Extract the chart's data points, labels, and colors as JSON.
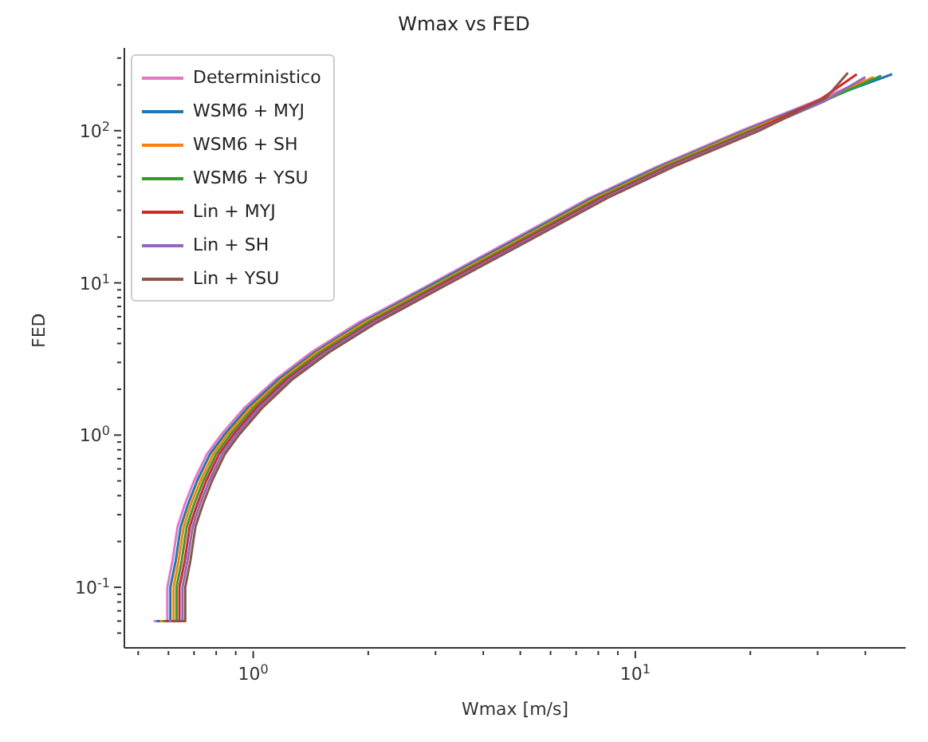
{
  "chart_data": {
    "type": "line",
    "title": "Wmax vs FED",
    "xlabel": "Wmax [m/s]",
    "ylabel": "FED",
    "log": "xy",
    "grid": false,
    "legend": "top left",
    "marker": "none",
    "line_style": "solid",
    "xlim": [
      0.46,
      51
    ],
    "ylim": [
      0.04,
      350
    ],
    "xticks": [
      {
        "value": 0.5,
        "label": null
      },
      {
        "value": 0.6,
        "label": null
      },
      {
        "value": 0.7,
        "label": null
      },
      {
        "value": 0.8,
        "label": null
      },
      {
        "value": 0.9,
        "label": null
      },
      {
        "value": 1,
        "label": "10$^{0}$"
      },
      {
        "value": 2,
        "label": null
      },
      {
        "value": 3,
        "label": null
      },
      {
        "value": 4,
        "label": null
      },
      {
        "value": 5,
        "label": null
      },
      {
        "value": 6,
        "label": null
      },
      {
        "value": 7,
        "label": null
      },
      {
        "value": 8,
        "label": null
      },
      {
        "value": 9,
        "label": null
      },
      {
        "value": 10,
        "label": "10$^{1}$"
      },
      {
        "value": 20,
        "label": null
      },
      {
        "value": 30,
        "label": null
      },
      {
        "value": 40,
        "label": null
      }
    ],
    "yticks": [
      {
        "value": 0.05,
        "label": null
      },
      {
        "value": 0.06,
        "label": null
      },
      {
        "value": 0.07,
        "label": null
      },
      {
        "value": 0.08,
        "label": null
      },
      {
        "value": 0.09,
        "label": null
      },
      {
        "value": 0.1,
        "label": "10$^{-1}$"
      },
      {
        "value": 0.2,
        "label": null
      },
      {
        "value": 0.3,
        "label": null
      },
      {
        "value": 0.4,
        "label": null
      },
      {
        "value": 0.5,
        "label": null
      },
      {
        "value": 0.6,
        "label": null
      },
      {
        "value": 0.7,
        "label": null
      },
      {
        "value": 0.8,
        "label": null
      },
      {
        "value": 0.9,
        "label": null
      },
      {
        "value": 1,
        "label": "10$^{0}$"
      },
      {
        "value": 2,
        "label": null
      },
      {
        "value": 3,
        "label": null
      },
      {
        "value": 4,
        "label": null
      },
      {
        "value": 5,
        "label": null
      },
      {
        "value": 6,
        "label": null
      },
      {
        "value": 7,
        "label": null
      },
      {
        "value": 8,
        "label": null
      },
      {
        "value": 9,
        "label": null
      },
      {
        "value": 10,
        "label": "10$^{1}$"
      },
      {
        "value": 20,
        "label": null
      },
      {
        "value": 30,
        "label": null
      },
      {
        "value": 40,
        "label": null
      },
      {
        "value": 50,
        "label": null
      },
      {
        "value": 60,
        "label": null
      },
      {
        "value": 70,
        "label": null
      },
      {
        "value": 80,
        "label": null
      },
      {
        "value": 90,
        "label": null
      },
      {
        "value": 100,
        "label": "10$^{2}$"
      },
      {
        "value": 200,
        "label": null
      },
      {
        "value": 300,
        "label": null
      }
    ],
    "series": [
      {
        "name": "Deterministico",
        "color": "#e377c2",
        "x": [
          0.549,
          0.596,
          0.596,
          0.615,
          0.634,
          0.662,
          0.7,
          0.757,
          0.823,
          0.946,
          1.14,
          1.42,
          1.89,
          2.84,
          4.73,
          7.57,
          11.4,
          18.9,
          28.4,
          40
        ],
        "values": [
          0.06,
          0.06,
          0.1,
          0.15,
          0.25,
          0.35,
          0.5,
          0.75,
          1.0,
          1.5,
          2.3,
          3.5,
          5.5,
          9.5,
          19,
          36,
          58,
          100,
          150,
          215
        ]
      },
      {
        "name": "WSM6 + MYJ",
        "color": "#1f77b4",
        "x": [
          0.559,
          0.607,
          0.607,
          0.627,
          0.646,
          0.675,
          0.713,
          0.771,
          0.839,
          0.964,
          1.16,
          1.45,
          1.93,
          2.89,
          4.82,
          7.71,
          11.6,
          19.3,
          28.9,
          47
        ],
        "values": [
          0.06,
          0.06,
          0.1,
          0.15,
          0.25,
          0.35,
          0.5,
          0.75,
          1.0,
          1.5,
          2.3,
          3.5,
          5.5,
          9.5,
          19,
          36,
          58,
          100,
          150,
          235
        ]
      },
      {
        "name": "WSM6 + SH",
        "color": "#ff7f0e",
        "x": [
          0.57,
          0.619,
          0.619,
          0.638,
          0.658,
          0.687,
          0.727,
          0.786,
          0.854,
          0.982,
          1.18,
          1.47,
          1.96,
          2.95,
          4.91,
          7.86,
          11.8,
          19.6,
          29.5,
          42
        ],
        "values": [
          0.06,
          0.06,
          0.1,
          0.15,
          0.25,
          0.35,
          0.5,
          0.75,
          1.0,
          1.5,
          2.3,
          3.5,
          5.5,
          9.5,
          19,
          36,
          58,
          100,
          150,
          225
        ]
      },
      {
        "name": "WSM6 + YSU",
        "color": "#2ca02c",
        "x": [
          0.58,
          0.63,
          0.63,
          0.65,
          0.67,
          0.7,
          0.74,
          0.8,
          0.87,
          1.0,
          1.2,
          1.5,
          2,
          3,
          5,
          8,
          12,
          20,
          30,
          44
        ],
        "values": [
          0.06,
          0.06,
          0.1,
          0.15,
          0.25,
          0.35,
          0.5,
          0.75,
          1.0,
          1.5,
          2.3,
          3.5,
          5.5,
          9.5,
          19,
          36,
          58,
          100,
          150,
          230
        ]
      },
      {
        "name": "Lin + MYJ",
        "color": "#d62728",
        "x": [
          0.59,
          0.641,
          0.641,
          0.662,
          0.682,
          0.713,
          0.753,
          0.814,
          0.886,
          1.018,
          1.22,
          1.53,
          2.04,
          3.05,
          5.09,
          8.14,
          12.2,
          20.4,
          30.5,
          38
        ],
        "values": [
          0.06,
          0.06,
          0.1,
          0.15,
          0.25,
          0.35,
          0.5,
          0.75,
          1.0,
          1.5,
          2.3,
          3.5,
          5.5,
          9.5,
          19,
          36,
          58,
          100,
          160,
          235
        ]
      },
      {
        "name": "Lin + SH",
        "color": "#9467bd",
        "x": [
          0.601,
          0.653,
          0.653,
          0.673,
          0.694,
          0.725,
          0.767,
          0.829,
          0.901,
          1.036,
          1.24,
          1.55,
          2.07,
          3.11,
          5.18,
          8.29,
          12.4,
          20.7,
          31.1,
          40
        ],
        "values": [
          0.06,
          0.06,
          0.1,
          0.15,
          0.25,
          0.35,
          0.5,
          0.75,
          1.0,
          1.5,
          2.3,
          3.5,
          5.5,
          9.5,
          19,
          36,
          58,
          100,
          155,
          225
        ]
      },
      {
        "name": "Lin + YSU",
        "color": "#8c564b",
        "x": [
          0.611,
          0.664,
          0.664,
          0.685,
          0.706,
          0.738,
          0.78,
          0.843,
          0.917,
          1.054,
          1.26,
          1.58,
          2.11,
          3.16,
          5.27,
          8.43,
          12.6,
          21.1,
          31.6,
          36
        ],
        "values": [
          0.06,
          0.06,
          0.1,
          0.15,
          0.25,
          0.35,
          0.5,
          0.75,
          1.0,
          1.5,
          2.3,
          3.5,
          5.5,
          9.5,
          19,
          36,
          58,
          100,
          165,
          240
        ]
      }
    ]
  }
}
